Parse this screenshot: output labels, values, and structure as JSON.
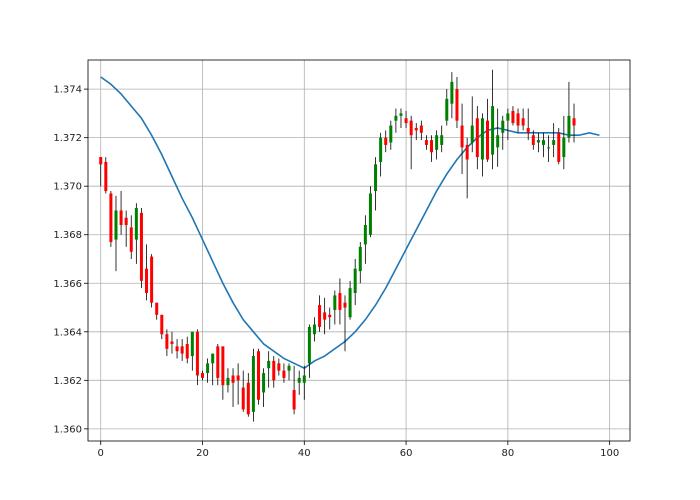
{
  "chart_data": {
    "type": "candlestick",
    "title": "",
    "xlabel": "",
    "ylabel": "",
    "xlim": [
      -2.5,
      104
    ],
    "ylim": [
      1.3595,
      1.3752
    ],
    "grid": true,
    "x_ticks": [
      0,
      20,
      40,
      60,
      80,
      100
    ],
    "y_ticks": [
      1.36,
      1.362,
      1.364,
      1.366,
      1.368,
      1.37,
      1.372,
      1.374
    ],
    "x_tick_labels": [
      "0",
      "20",
      "40",
      "60",
      "80",
      "100"
    ],
    "y_tick_labels": [
      "1.360",
      "1.362",
      "1.364",
      "1.366",
      "1.368",
      "1.370",
      "1.372",
      "1.374"
    ],
    "colors": {
      "up": "#008000",
      "down": "#ff0000",
      "wick": "#000000",
      "ma_line": "#1f77b4"
    },
    "candles": [
      [
        0,
        1.3712,
        1.3712,
        1.37,
        1.3709
      ],
      [
        1,
        1.371,
        1.3712,
        1.3697,
        1.3698
      ],
      [
        2,
        1.3697,
        1.3698,
        1.3675,
        1.3677
      ],
      [
        3,
        1.3678,
        1.3696,
        1.3665,
        1.369
      ],
      [
        4,
        1.369,
        1.3698,
        1.368,
        1.3684
      ],
      [
        5,
        1.3687,
        1.369,
        1.3675,
        1.3684
      ],
      [
        6,
        1.3683,
        1.3688,
        1.367,
        1.3673
      ],
      [
        7,
        1.3678,
        1.3693,
        1.3668,
        1.3691
      ],
      [
        8,
        1.3689,
        1.3691,
        1.3658,
        1.3661
      ],
      [
        9,
        1.3666,
        1.3676,
        1.3653,
        1.3656
      ],
      [
        10,
        1.3671,
        1.3672,
        1.365,
        1.3652
      ],
      [
        11,
        1.3652,
        1.3652,
        1.3645,
        1.3647
      ],
      [
        12,
        1.3647,
        1.3647,
        1.3637,
        1.3639
      ],
      [
        13,
        1.3639,
        1.3641,
        1.363,
        1.3633
      ],
      [
        14,
        1.3636,
        1.364,
        1.3631,
        1.3635
      ],
      [
        15,
        1.3634,
        1.3637,
        1.3629,
        1.3632
      ],
      [
        16,
        1.3634,
        1.3637,
        1.3628,
        1.3631
      ],
      [
        17,
        1.3635,
        1.3638,
        1.3627,
        1.3629
      ],
      [
        18,
        1.363,
        1.364,
        1.3624,
        1.364
      ],
      [
        19,
        1.364,
        1.3641,
        1.3618,
        1.3622
      ],
      [
        20,
        1.3623,
        1.3624,
        1.362,
        1.3621
      ],
      [
        21,
        1.3623,
        1.3629,
        1.3619,
        1.3627
      ],
      [
        22,
        1.3627,
        1.3631,
        1.3618,
        1.3631
      ],
      [
        23,
        1.3634,
        1.3635,
        1.3618,
        1.3621
      ],
      [
        24,
        1.3634,
        1.3634,
        1.3612,
        1.3618
      ],
      [
        25,
        1.3618,
        1.3625,
        1.3615,
        1.3621
      ],
      [
        26,
        1.3622,
        1.3625,
        1.3609,
        1.3619
      ],
      [
        27,
        1.3622,
        1.3627,
        1.361,
        1.362
      ],
      [
        28,
        1.3617,
        1.3624,
        1.3607,
        1.3608
      ],
      [
        29,
        1.3619,
        1.3623,
        1.3605,
        1.3606
      ],
      [
        30,
        1.3607,
        1.3633,
        1.3603,
        1.363
      ],
      [
        31,
        1.3632,
        1.3633,
        1.361,
        1.3612
      ],
      [
        32,
        1.3615,
        1.3625,
        1.3609,
        1.3623
      ],
      [
        33,
        1.3625,
        1.3632,
        1.3617,
        1.3628
      ],
      [
        34,
        1.3628,
        1.363,
        1.3617,
        1.362
      ],
      [
        35,
        1.3627,
        1.3629,
        1.3622,
        1.3624
      ],
      [
        36,
        1.3624,
        1.3627,
        1.3619,
        1.3621
      ],
      [
        37,
        1.3624,
        1.3627,
        1.362,
        1.3626
      ],
      [
        38,
        1.3616,
        1.3626,
        1.3606,
        1.3608
      ],
      [
        39,
        1.3619,
        1.3624,
        1.3614,
        1.3621
      ],
      [
        40,
        1.3619,
        1.3626,
        1.3612,
        1.3622
      ],
      [
        41,
        1.3627,
        1.3643,
        1.3621,
        1.3642
      ],
      [
        42,
        1.3639,
        1.3646,
        1.3636,
        1.3643
      ],
      [
        43,
        1.3651,
        1.3655,
        1.364,
        1.3642
      ],
      [
        44,
        1.3648,
        1.3654,
        1.3639,
        1.3645
      ],
      [
        45,
        1.3647,
        1.365,
        1.3641,
        1.3646
      ],
      [
        46,
        1.3649,
        1.3657,
        1.3643,
        1.3655
      ],
      [
        47,
        1.3656,
        1.3662,
        1.3643,
        1.3649
      ],
      [
        48,
        1.3652,
        1.3655,
        1.3632,
        1.365
      ],
      [
        49,
        1.3646,
        1.3661,
        1.3645,
        1.3658
      ],
      [
        50,
        1.3656,
        1.367,
        1.3651,
        1.3666
      ],
      [
        51,
        1.3665,
        1.3677,
        1.366,
        1.3675
      ],
      [
        52,
        1.3676,
        1.3688,
        1.3668,
        1.3684
      ],
      [
        53,
        1.368,
        1.37,
        1.3679,
        1.3697
      ],
      [
        54,
        1.3698,
        1.3712,
        1.369,
        1.3709
      ],
      [
        55,
        1.371,
        1.3722,
        1.3704,
        1.372
      ],
      [
        56,
        1.372,
        1.3723,
        1.3714,
        1.3717
      ],
      [
        57,
        1.3718,
        1.3727,
        1.3715,
        1.3725
      ],
      [
        58,
        1.3727,
        1.3732,
        1.3722,
        1.3729
      ],
      [
        59,
        1.3729,
        1.3732,
        1.3724,
        1.373
      ],
      [
        60,
        1.3728,
        1.3731,
        1.3724,
        1.3726
      ],
      [
        61,
        1.3727,
        1.3729,
        1.3707,
        1.3721
      ],
      [
        62,
        1.3724,
        1.3726,
        1.3719,
        1.3723
      ],
      [
        63,
        1.3725,
        1.3727,
        1.3719,
        1.3722
      ],
      [
        64,
        1.3719,
        1.3721,
        1.3715,
        1.3717
      ],
      [
        65,
        1.3719,
        1.3721,
        1.371,
        1.3714
      ],
      [
        66,
        1.3715,
        1.3723,
        1.3711,
        1.3721
      ],
      [
        67,
        1.3717,
        1.3725,
        1.3714,
        1.3721
      ],
      [
        68,
        1.3727,
        1.374,
        1.3725,
        1.3736
      ],
      [
        69,
        1.3734,
        1.3747,
        1.3728,
        1.3743
      ],
      [
        70,
        1.374,
        1.3745,
        1.3724,
        1.3727
      ],
      [
        71,
        1.3725,
        1.3734,
        1.3705,
        1.3716
      ],
      [
        72,
        1.3717,
        1.372,
        1.3695,
        1.3711
      ],
      [
        73,
        1.3718,
        1.3737,
        1.3714,
        1.3725
      ],
      [
        74,
        1.3728,
        1.3733,
        1.3707,
        1.3712
      ],
      [
        75,
        1.3711,
        1.373,
        1.3704,
        1.3728
      ],
      [
        76,
        1.3727,
        1.3736,
        1.371,
        1.3711
      ],
      [
        77,
        1.3713,
        1.3748,
        1.3707,
        1.3733
      ],
      [
        78,
        1.3716,
        1.3732,
        1.3708,
        1.3721
      ],
      [
        79,
        1.3722,
        1.3729,
        1.3715,
        1.3727
      ],
      [
        80,
        1.3727,
        1.3732,
        1.3719,
        1.373
      ],
      [
        81,
        1.3731,
        1.3733,
        1.3725,
        1.3726
      ],
      [
        82,
        1.373,
        1.3732,
        1.3722,
        1.3725
      ],
      [
        83,
        1.3728,
        1.3732,
        1.3723,
        1.3725
      ],
      [
        84,
        1.3724,
        1.3732,
        1.3719,
        1.3722
      ],
      [
        85,
        1.3721,
        1.3723,
        1.3715,
        1.3717
      ],
      [
        86,
        1.3718,
        1.3722,
        1.3714,
        1.3719
      ],
      [
        87,
        1.3717,
        1.3722,
        1.3712,
        1.3719
      ],
      [
        88,
        1.3716,
        1.3721,
        1.371,
        1.3716
      ],
      [
        89,
        1.3717,
        1.3726,
        1.3712,
        1.3719
      ],
      [
        90,
        1.3722,
        1.3724,
        1.3709,
        1.371
      ],
      [
        91,
        1.3712,
        1.3729,
        1.3707,
        1.372
      ],
      [
        92,
        1.372,
        1.3743,
        1.3718,
        1.3729
      ],
      [
        93,
        1.3728,
        1.3734,
        1.3718,
        1.3725
      ]
    ],
    "ma_series": {
      "x": [
        0,
        2,
        4,
        6,
        8,
        10,
        12,
        14,
        16,
        18,
        20,
        22,
        24,
        26,
        28,
        30,
        32,
        34,
        36,
        38,
        40,
        42,
        44,
        46,
        48,
        50,
        52,
        54,
        56,
        58,
        60,
        62,
        64,
        66,
        68,
        70,
        72,
        74,
        76,
        78,
        80,
        82,
        84,
        86,
        88,
        90,
        92,
        94,
        96,
        98
      ],
      "y": [
        1.3745,
        1.3742,
        1.3738,
        1.3733,
        1.3728,
        1.3721,
        1.3713,
        1.3704,
        1.3695,
        1.3687,
        1.3678,
        1.3669,
        1.366,
        1.3652,
        1.3645,
        1.364,
        1.3635,
        1.3632,
        1.3629,
        1.3627,
        1.3625,
        1.3628,
        1.363,
        1.3633,
        1.3636,
        1.364,
        1.3645,
        1.3651,
        1.3658,
        1.3666,
        1.3674,
        1.3682,
        1.369,
        1.3698,
        1.3705,
        1.3711,
        1.3716,
        1.372,
        1.3723,
        1.3724,
        1.3723,
        1.3722,
        1.3722,
        1.3722,
        1.3722,
        1.3722,
        1.3721,
        1.3721,
        1.3722,
        1.3721
      ]
    }
  }
}
